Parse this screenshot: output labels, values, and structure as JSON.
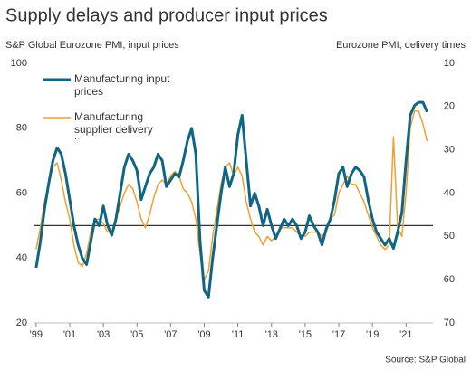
{
  "chart_data": {
    "type": "line",
    "title": "Supply delays and producer input prices",
    "y_label": "S&P Global Eurozone PMI, input prices",
    "y2_label": "Eurozone PMI, delivery times",
    "source": "Source: S&P Global",
    "x": [
      1999,
      1999.25,
      1999.5,
      1999.75,
      2000,
      2000.25,
      2000.5,
      2000.75,
      2001,
      2001.25,
      2001.5,
      2001.75,
      2002,
      2002.25,
      2002.5,
      2002.75,
      2003,
      2003.25,
      2003.5,
      2003.75,
      2004,
      2004.25,
      2004.5,
      2004.75,
      2005,
      2005.25,
      2005.5,
      2005.75,
      2006,
      2006.25,
      2006.5,
      2006.75,
      2007,
      2007.25,
      2007.5,
      2007.75,
      2008,
      2008.25,
      2008.5,
      2008.75,
      2009,
      2009.25,
      2009.5,
      2009.75,
      2010,
      2010.25,
      2010.5,
      2010.75,
      2011,
      2011.25,
      2011.5,
      2011.75,
      2012,
      2012.25,
      2012.5,
      2012.75,
      2013,
      2013.25,
      2013.5,
      2013.75,
      2014,
      2014.25,
      2014.5,
      2014.75,
      2015,
      2015.25,
      2015.5,
      2015.75,
      2016,
      2016.25,
      2016.5,
      2016.75,
      2017,
      2017.25,
      2017.5,
      2017.75,
      2018,
      2018.25,
      2018.5,
      2018.75,
      2019,
      2019.25,
      2019.5,
      2019.75,
      2020,
      2020.25,
      2020.5,
      2020.75,
      2021,
      2021.25,
      2021.5,
      2021.75,
      2022,
      2022.25
    ],
    "series": [
      {
        "name": "Manufacturing input prices",
        "color": "#0e6584",
        "axis": "y",
        "values": [
          37,
          45,
          55,
          63,
          70,
          74,
          72,
          66,
          58,
          50,
          44,
          40,
          38,
          45,
          52,
          50,
          56,
          50,
          47,
          52,
          60,
          68,
          72,
          70,
          67,
          58,
          62,
          66,
          68,
          72,
          70,
          62,
          64,
          66,
          65,
          70,
          76,
          80,
          72,
          45,
          30,
          28,
          40,
          50,
          60,
          68,
          62,
          66,
          78,
          84,
          70,
          56,
          60,
          56,
          50,
          55,
          50,
          46,
          49,
          52,
          50,
          52,
          50,
          46,
          48,
          53,
          50,
          48,
          44,
          49,
          52,
          58,
          66,
          68,
          62,
          66,
          68,
          67,
          65,
          58,
          52,
          48,
          46,
          44,
          46,
          43,
          48,
          54,
          70,
          84,
          87,
          88,
          88,
          85
        ]
      },
      {
        "name": "Manufacturing supplier delivery times",
        "color": "#f0a030",
        "axis": "y2",
        "values": [
          53,
          48,
          42,
          38,
          34,
          33,
          37,
          42,
          46,
          52,
          56,
          57,
          54,
          49,
          46,
          46,
          47,
          49,
          49,
          46,
          43,
          40,
          38,
          39,
          42,
          46,
          48,
          45,
          41,
          38,
          37,
          38,
          36,
          35,
          36,
          39,
          40,
          42,
          46,
          54,
          60,
          58,
          50,
          44,
          38,
          34,
          33,
          36,
          34,
          36,
          42,
          46,
          49,
          50,
          52,
          50,
          51,
          50,
          48,
          48,
          48,
          48,
          49,
          50,
          50,
          49,
          49,
          49,
          50,
          49,
          46,
          45,
          40,
          38,
          36,
          38,
          38,
          40,
          42,
          45,
          48,
          50,
          52,
          53,
          52,
          27,
          48,
          50,
          40,
          25,
          21,
          21,
          24,
          28
        ]
      }
    ],
    "xlim": [
      1998.9,
      2022.6
    ],
    "xticks": [
      {
        "value": 1999,
        "label": "'99"
      },
      {
        "value": 2001,
        "label": "'01"
      },
      {
        "value": 2003,
        "label": "'03"
      },
      {
        "value": 2005,
        "label": "'05"
      },
      {
        "value": 2007,
        "label": "'07"
      },
      {
        "value": 2009,
        "label": "'09"
      },
      {
        "value": 2011,
        "label": "'11"
      },
      {
        "value": 2013,
        "label": "'13"
      },
      {
        "value": 2015,
        "label": "'15"
      },
      {
        "value": 2017,
        "label": "'17"
      },
      {
        "value": 2019,
        "label": "'19"
      },
      {
        "value": 2021,
        "label": "'21"
      }
    ],
    "ylim": [
      20,
      100
    ],
    "yticks": [
      20,
      40,
      60,
      80,
      100
    ],
    "y2lim": [
      70,
      10
    ],
    "y2ticks": [
      10,
      20,
      30,
      40,
      50,
      60,
      70
    ],
    "hline": 50
  }
}
